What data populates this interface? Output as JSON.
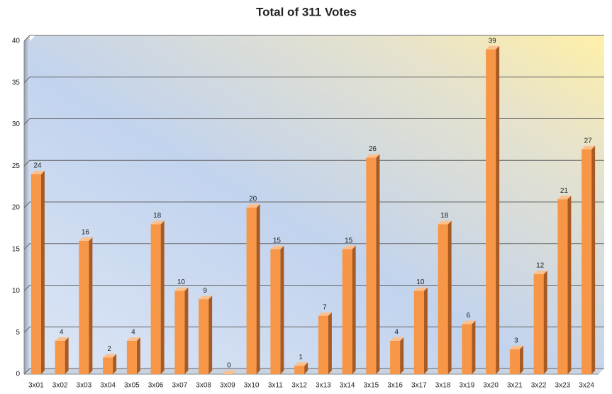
{
  "chart_data": {
    "type": "bar",
    "title": "Total of 311 Votes",
    "categories": [
      "3x01",
      "3x02",
      "3x03",
      "3x04",
      "3x05",
      "3x06",
      "3x07",
      "3x08",
      "3x09",
      "3x10",
      "3x11",
      "3x12",
      "3x13",
      "3x14",
      "3x15",
      "3x16",
      "3x17",
      "3x18",
      "3x19",
      "3x20",
      "3x21",
      "3x22",
      "3x23",
      "3x24"
    ],
    "values": [
      24,
      4,
      16,
      2,
      4,
      18,
      10,
      9,
      0,
      20,
      15,
      1,
      7,
      15,
      26,
      4,
      10,
      18,
      6,
      39,
      3,
      12,
      21,
      27
    ],
    "color": "#f79646",
    "ylim": [
      0,
      40
    ],
    "yticks": [
      0,
      5,
      10,
      15,
      20,
      25,
      30,
      35,
      40
    ],
    "grid": true
  }
}
